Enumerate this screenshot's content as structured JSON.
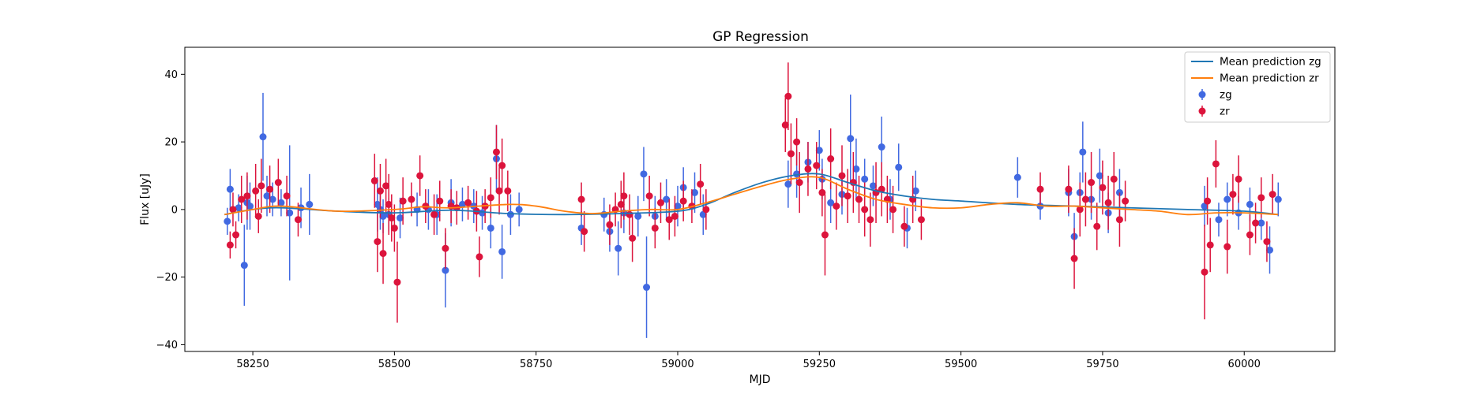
{
  "chart_data": {
    "type": "scatter",
    "title": "GP Regression",
    "xlabel": "MJD",
    "ylabel": "Flux [uJy]",
    "xlim": [
      58130,
      60160
    ],
    "ylim": [
      -42,
      48
    ],
    "xticks": [
      58250,
      58500,
      58750,
      59000,
      59250,
      59500,
      59750,
      60000
    ],
    "yticks": [
      -40,
      -20,
      0,
      20,
      40
    ],
    "legend_position": "top-right",
    "colors": {
      "zg_line": "#1f77b4",
      "zr_line": "#ff7f0e",
      "zg_points": "#4169e1",
      "zr_points": "#dc143c"
    },
    "lines": [
      {
        "name": "Mean prediction zg",
        "x": [
          58200,
          58250,
          58300,
          58400,
          58500,
          58600,
          58700,
          58800,
          58900,
          59000,
          59050,
          59100,
          59150,
          59200,
          59250,
          59300,
          59350,
          59400,
          59450,
          59500,
          59600,
          59700,
          59800,
          59900,
          60000,
          60060
        ],
        "y": [
          -1.5,
          0,
          0.5,
          -0.5,
          -1,
          -0.2,
          -1.2,
          -1.5,
          -1.2,
          -0.5,
          1.5,
          5,
          8,
          10,
          10.5,
          8,
          5.5,
          4,
          3,
          2.5,
          1.5,
          1,
          0.5,
          0,
          -0.5,
          -1.5
        ]
      },
      {
        "name": "Mean prediction zr",
        "x": [
          58200,
          58250,
          58300,
          58400,
          58500,
          58550,
          58600,
          58700,
          58750,
          58800,
          58850,
          58900,
          58950,
          59000,
          59050,
          59100,
          59150,
          59200,
          59250,
          59300,
          59350,
          59400,
          59450,
          59500,
          59550,
          59600,
          59650,
          59700,
          59750,
          59800,
          59850,
          59900,
          59950,
          60000,
          60060
        ],
        "y": [
          -1.5,
          0,
          1,
          -0.5,
          0,
          0.8,
          0.5,
          1.5,
          1,
          -0.5,
          -1.2,
          -0.5,
          0,
          0,
          2,
          4.5,
          7,
          9,
          9.5,
          6,
          3,
          1.5,
          0.5,
          0.5,
          1.5,
          2,
          1,
          1,
          0.5,
          0,
          -0.5,
          -1.5,
          -1,
          -1,
          -1.5
        ]
      }
    ],
    "series": [
      {
        "name": "zg",
        "x": [
          58205,
          58210,
          58225,
          58235,
          58240,
          58245,
          58268,
          58275,
          58285,
          58300,
          58315,
          58335,
          58350,
          58470,
          58475,
          58480,
          58490,
          58510,
          58540,
          58560,
          58575,
          58590,
          58600,
          58620,
          58640,
          58655,
          58670,
          58680,
          58690,
          58705,
          58720,
          58830,
          58870,
          58880,
          58895,
          58905,
          58930,
          58940,
          58945,
          58960,
          58980,
          59000,
          59010,
          59030,
          59045,
          59195,
          59210,
          59230,
          59250,
          59255,
          59270,
          59290,
          59305,
          59315,
          59330,
          59345,
          59360,
          59375,
          59390,
          59405,
          59420,
          59600,
          59640,
          59690,
          59700,
          59710,
          59715,
          59730,
          59745,
          59760,
          59780,
          59930,
          59955,
          59970,
          59990,
          60010,
          60030,
          60045,
          60060
        ],
        "y": [
          -3.5,
          6,
          0.5,
          -16.5,
          2,
          1,
          21.5,
          4,
          3,
          2,
          -1,
          0.5,
          1.5,
          1.5,
          0,
          -2,
          -1.5,
          -2.5,
          0,
          0,
          -1.5,
          -18,
          2,
          1.5,
          1,
          -1,
          -5.5,
          15,
          -12.5,
          -1.5,
          0,
          -5.5,
          -1.5,
          -6.5,
          -11.5,
          -1,
          -2,
          10.5,
          -23,
          -2,
          3,
          1,
          6.5,
          5,
          -1.5,
          7.5,
          10.5,
          14,
          17.5,
          9,
          2,
          4.5,
          21,
          12,
          9,
          7,
          18.5,
          3,
          12.5,
          -5.5,
          5.5,
          9.5,
          1,
          5,
          -8,
          5,
          17,
          3,
          10,
          -1,
          5,
          1,
          -3,
          3,
          -1,
          1.5,
          -4,
          -12,
          3
        ],
        "err": [
          4,
          6,
          4,
          12,
          8,
          7,
          13,
          6,
          5,
          4,
          20,
          6,
          9,
          8,
          6,
          5,
          5,
          6,
          5,
          6,
          6,
          11,
          7,
          5,
          5,
          5,
          6,
          10,
          8,
          6,
          5,
          5,
          5,
          6,
          8,
          6,
          6,
          8,
          15,
          6,
          6,
          6,
          6,
          6,
          6,
          7,
          7,
          6,
          6,
          6,
          6,
          6,
          13,
          9,
          6,
          6,
          9,
          6,
          7,
          6,
          6,
          6,
          4,
          7,
          7,
          6,
          9,
          6,
          8,
          6,
          7,
          6,
          5,
          5,
          5,
          5,
          5,
          7,
          5
        ]
      },
      {
        "name": "zr",
        "x": [
          58210,
          58215,
          58220,
          58230,
          58240,
          58255,
          58260,
          58265,
          58280,
          58295,
          58310,
          58330,
          58465,
          58470,
          58475,
          58480,
          58485,
          58490,
          58495,
          58500,
          58505,
          58515,
          58530,
          58545,
          58555,
          58570,
          58580,
          58590,
          58600,
          58610,
          58630,
          58645,
          58650,
          58660,
          58670,
          58680,
          58685,
          58690,
          58700,
          58830,
          58835,
          58880,
          58890,
          58900,
          58905,
          58915,
          58920,
          58950,
          58960,
          58970,
          58985,
          58995,
          59010,
          59025,
          59040,
          59050,
          59190,
          59195,
          59200,
          59210,
          59215,
          59230,
          59245,
          59255,
          59260,
          59270,
          59280,
          59290,
          59300,
          59310,
          59320,
          59330,
          59340,
          59350,
          59360,
          59370,
          59380,
          59400,
          59415,
          59430,
          59640,
          59690,
          59700,
          59710,
          59720,
          59730,
          59740,
          59750,
          59760,
          59770,
          59780,
          59790,
          59930,
          59935,
          59940,
          59950,
          59970,
          59980,
          59990,
          60010,
          60020,
          60030,
          60040,
          60050
        ],
        "y": [
          -10.5,
          0,
          -7.5,
          3,
          4,
          5.5,
          -2,
          7,
          6,
          8,
          4,
          -3,
          8.5,
          -9.5,
          5.5,
          -13,
          7,
          1.5,
          -2.5,
          -5.5,
          -21.5,
          2.5,
          3,
          10,
          1,
          -1.5,
          2.5,
          -11.5,
          1,
          0.5,
          2,
          -0.5,
          -14,
          1,
          3.5,
          17,
          5.5,
          13,
          5.5,
          3,
          -6.5,
          -4.5,
          0,
          1.5,
          4,
          -1.5,
          -8.5,
          4,
          -5.5,
          2,
          -3,
          -2,
          2.5,
          1,
          7.5,
          0,
          25,
          33.5,
          16.5,
          20,
          8,
          12,
          13,
          5,
          -7.5,
          15,
          1,
          10,
          4,
          8,
          3,
          0,
          -3,
          5,
          6,
          3,
          0,
          -5,
          3,
          -3,
          6,
          6,
          -14.5,
          0,
          3,
          8,
          -5,
          6.5,
          2,
          9,
          -3,
          2.5,
          -18.5,
          2.5,
          -10.5,
          13.5,
          -11,
          4.5,
          9,
          -7.5,
          -4,
          3.5,
          -9.5,
          4.5
        ],
        "err": [
          4,
          5,
          4,
          7,
          7,
          8,
          5,
          8,
          7,
          7,
          6,
          5,
          8,
          9,
          8,
          9,
          8,
          9,
          7,
          7,
          12,
          7,
          5,
          6,
          5,
          6,
          6,
          6,
          5,
          5,
          5,
          6,
          6,
          5,
          6,
          8,
          7,
          8,
          6,
          5,
          6,
          6,
          5,
          7,
          7,
          6,
          7,
          6,
          6,
          6,
          6,
          6,
          6,
          5,
          6,
          6,
          8,
          10,
          9,
          7,
          9,
          8,
          7,
          7,
          12,
          9,
          7,
          9,
          8,
          9,
          7,
          8,
          8,
          9,
          8,
          7,
          7,
          6,
          7,
          6,
          5,
          7,
          9,
          8,
          8,
          9,
          7,
          8,
          8,
          8,
          8,
          6,
          14,
          7,
          8,
          7,
          8,
          6,
          7,
          6,
          6,
          6,
          6,
          6
        ]
      }
    ],
    "legend": [
      "Mean prediction zg",
      "Mean prediction zr",
      "zg",
      "zr"
    ]
  }
}
